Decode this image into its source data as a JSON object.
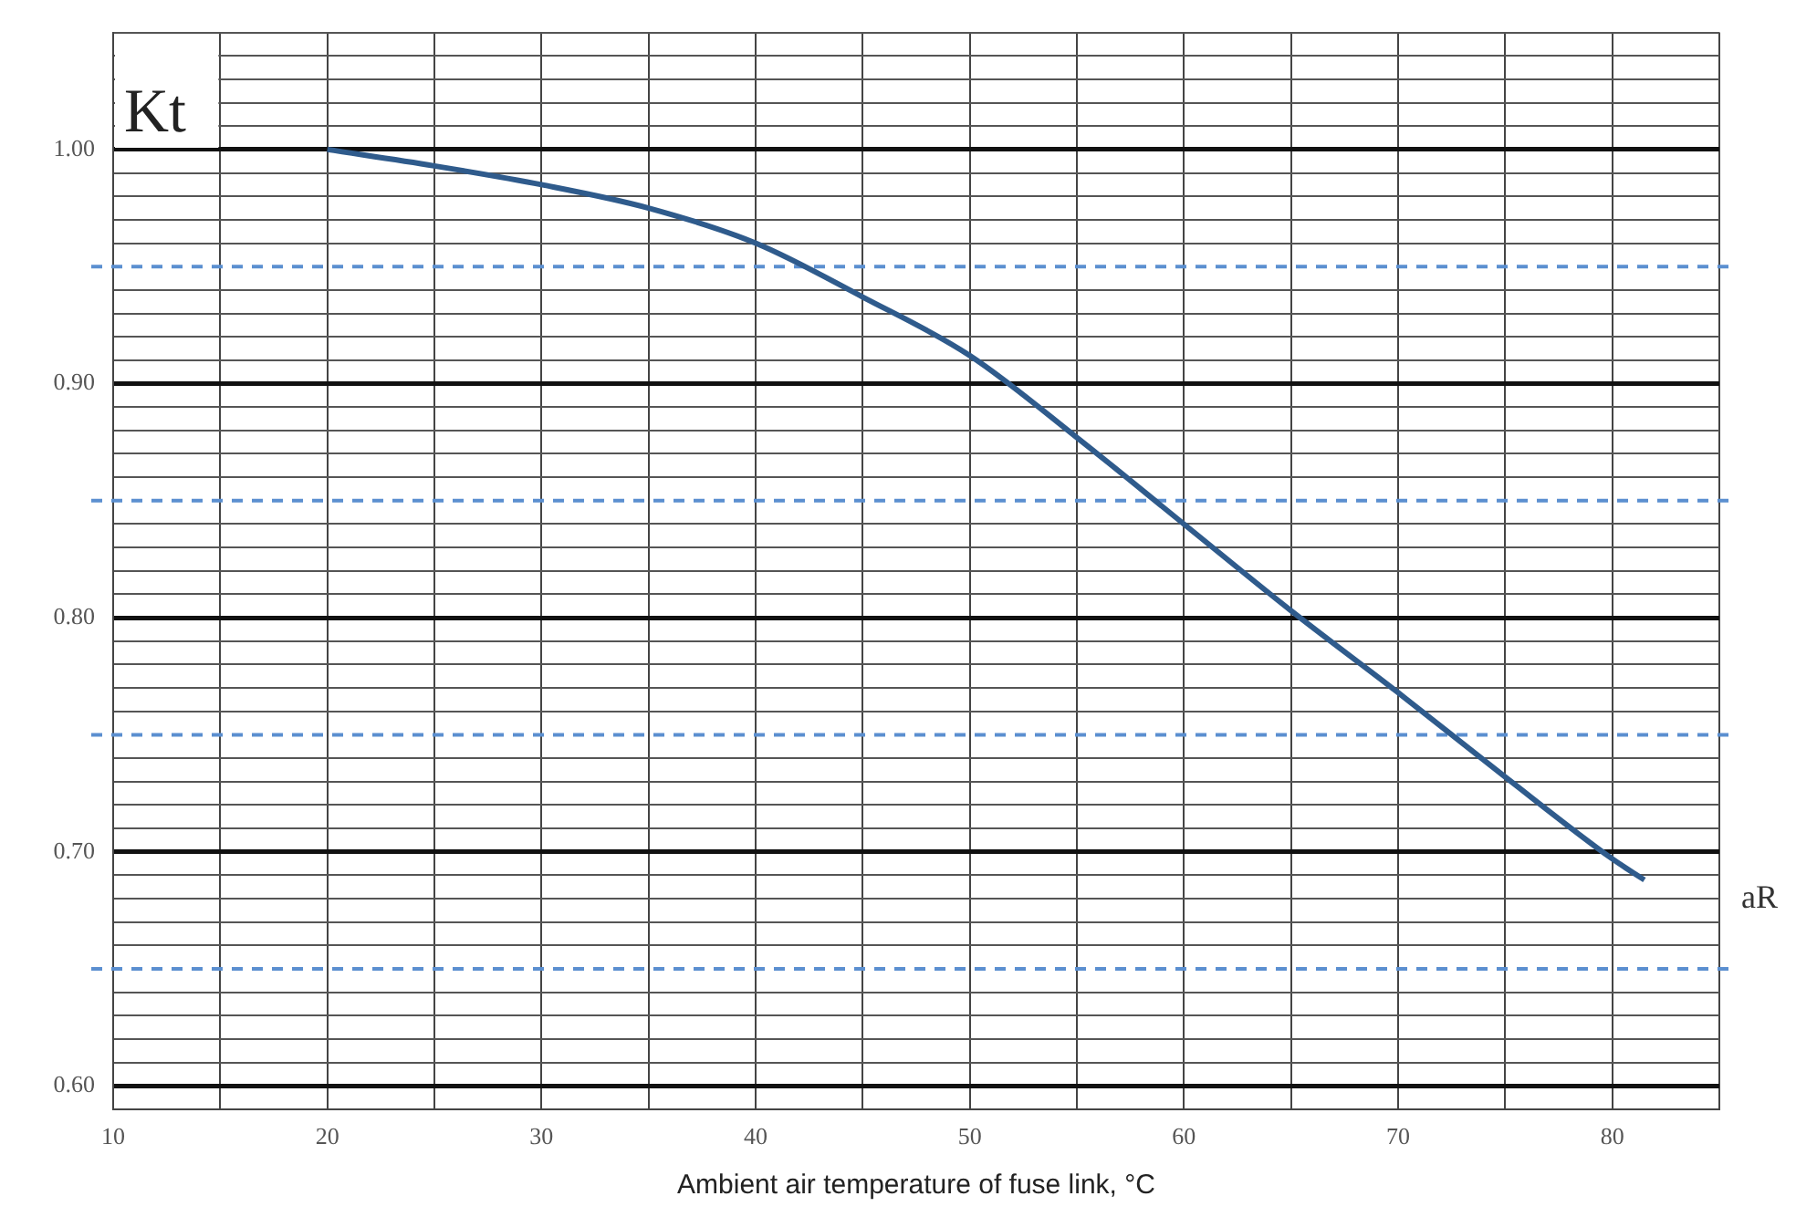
{
  "chart_data": {
    "type": "line",
    "xlabel": "Ambient air temperature of fuse link, °C",
    "ylabel": "Kt",
    "annotations": [
      "aR"
    ],
    "x": [
      20,
      25,
      30,
      35,
      40,
      45,
      50,
      55,
      60,
      65,
      70,
      75,
      80,
      81.5
    ],
    "series": [
      {
        "color": "#2f5b8c",
        "values": [
          1.0,
          0.993,
          0.985,
          0.975,
          0.96,
          0.937,
          0.912,
          0.877,
          0.84,
          0.803,
          0.768,
          0.732,
          0.697,
          0.688
        ]
      }
    ],
    "xlim": [
      10,
      85
    ],
    "xticks": [
      10,
      {
        "value": 15,
        "label": null
      },
      20,
      {
        "value": 25,
        "label": null
      },
      30,
      {
        "value": 35,
        "label": null
      },
      40,
      {
        "value": 45,
        "label": null
      },
      50,
      {
        "value": 55,
        "label": null
      },
      60,
      {
        "value": 65,
        "label": null
      },
      70,
      {
        "value": 75,
        "label": null
      },
      80,
      {
        "value": 85,
        "label": null
      }
    ],
    "ylim": [
      0.59,
      1.05
    ],
    "yticks": [
      {
        "value": 0.59,
        "label": null
      },
      {
        "value": 0.6,
        "label": "0.60"
      },
      {
        "value": 0.61,
        "label": null
      },
      {
        "value": 0.62,
        "label": null
      },
      {
        "value": 0.63,
        "label": null
      },
      {
        "value": 0.64,
        "label": null
      },
      {
        "value": 0.66,
        "label": null
      },
      {
        "value": 0.67,
        "label": null
      },
      {
        "value": 0.68,
        "label": null
      },
      {
        "value": 0.69,
        "label": null
      },
      {
        "value": 0.7,
        "label": "0.70"
      },
      {
        "value": 0.71,
        "label": null
      },
      {
        "value": 0.72,
        "label": null
      },
      {
        "value": 0.73,
        "label": null
      },
      {
        "value": 0.74,
        "label": null
      },
      {
        "value": 0.76,
        "label": null
      },
      {
        "value": 0.77,
        "label": null
      },
      {
        "value": 0.78,
        "label": null
      },
      {
        "value": 0.79,
        "label": null
      },
      {
        "value": 0.8,
        "label": "0.80"
      },
      {
        "value": 0.81,
        "label": null
      },
      {
        "value": 0.82,
        "label": null
      },
      {
        "value": 0.83,
        "label": null
      },
      {
        "value": 0.84,
        "label": null
      },
      {
        "value": 0.86,
        "label": null
      },
      {
        "value": 0.87,
        "label": null
      },
      {
        "value": 0.88,
        "label": null
      },
      {
        "value": 0.89,
        "label": null
      },
      {
        "value": 0.9,
        "label": "0.90"
      },
      {
        "value": 0.91,
        "label": null
      },
      {
        "value": 0.92,
        "label": null
      },
      {
        "value": 0.93,
        "label": null
      },
      {
        "value": 0.94,
        "label": null
      },
      {
        "value": 0.96,
        "label": null
      },
      {
        "value": 0.97,
        "label": null
      },
      {
        "value": 0.98,
        "label": null
      },
      {
        "value": 0.99,
        "label": null
      },
      {
        "value": 1.0,
        "label": "1.00"
      },
      {
        "value": 1.01,
        "label": null
      },
      {
        "value": 1.02,
        "label": null
      },
      {
        "value": 1.03,
        "label": null
      },
      {
        "value": 1.04,
        "label": null
      },
      {
        "value": 1.05,
        "label": null
      }
    ],
    "ref_lines": [
      {
        "axis": "y",
        "value": 0.95,
        "color": "#5b8fd0",
        "line_style": "dashed"
      },
      {
        "axis": "y",
        "value": 0.85,
        "color": "#5b8fd0",
        "line_style": "dashed"
      },
      {
        "axis": "y",
        "value": 0.75,
        "color": "#5b8fd0",
        "line_style": "dashed"
      },
      {
        "axis": "y",
        "value": 0.65,
        "color": "#5b8fd0",
        "line_style": "dashed"
      }
    ],
    "grid": true,
    "legend": false,
    "marker": "none",
    "line_style": "solid"
  }
}
